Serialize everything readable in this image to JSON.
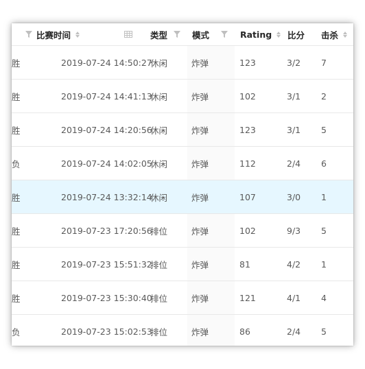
{
  "columns": {
    "datetime": "比赛时间",
    "type": "类型",
    "mode": "模式",
    "rating": "Rating",
    "score": "比分",
    "kills": "击杀"
  },
  "rows": [
    {
      "result": "胜",
      "datetime": "2019-07-24 14:50:27",
      "type": "休闲",
      "mode": "炸弹",
      "rating": "123",
      "score": "3/2",
      "kills": "7"
    },
    {
      "result": "胜",
      "datetime": "2019-07-24 14:41:13",
      "type": "休闲",
      "mode": "炸弹",
      "rating": "102",
      "score": "3/1",
      "kills": "2"
    },
    {
      "result": "胜",
      "datetime": "2019-07-24 14:20:56",
      "type": "休闲",
      "mode": "炸弹",
      "rating": "123",
      "score": "3/1",
      "kills": "5"
    },
    {
      "result": "负",
      "datetime": "2019-07-24 14:02:05",
      "type": "休闲",
      "mode": "炸弹",
      "rating": "112",
      "score": "2/4",
      "kills": "6"
    },
    {
      "result": "胜",
      "datetime": "2019-07-24 13:32:14",
      "type": "休闲",
      "mode": "炸弹",
      "rating": "107",
      "score": "3/0",
      "kills": "1"
    },
    {
      "result": "胜",
      "datetime": "2019-07-23 17:20:56",
      "type": "排位",
      "mode": "炸弹",
      "rating": "102",
      "score": "9/3",
      "kills": "5"
    },
    {
      "result": "胜",
      "datetime": "2019-07-23 15:51:32",
      "type": "排位",
      "mode": "炸弹",
      "rating": "81",
      "score": "4/2",
      "kills": "1"
    },
    {
      "result": "胜",
      "datetime": "2019-07-23 15:30:40",
      "type": "排位",
      "mode": "炸弹",
      "rating": "121",
      "score": "4/1",
      "kills": "4"
    },
    {
      "result": "负",
      "datetime": "2019-07-23 15:02:53",
      "type": "排位",
      "mode": "炸弹",
      "rating": "86",
      "score": "2/4",
      "kills": "5"
    }
  ],
  "highlighted_row": 4,
  "colors": {
    "highlight": "#e6f7ff",
    "border": "#e8e8e8",
    "text": "#595959",
    "header_text": "#262626",
    "icon": "#bfbfbf"
  }
}
